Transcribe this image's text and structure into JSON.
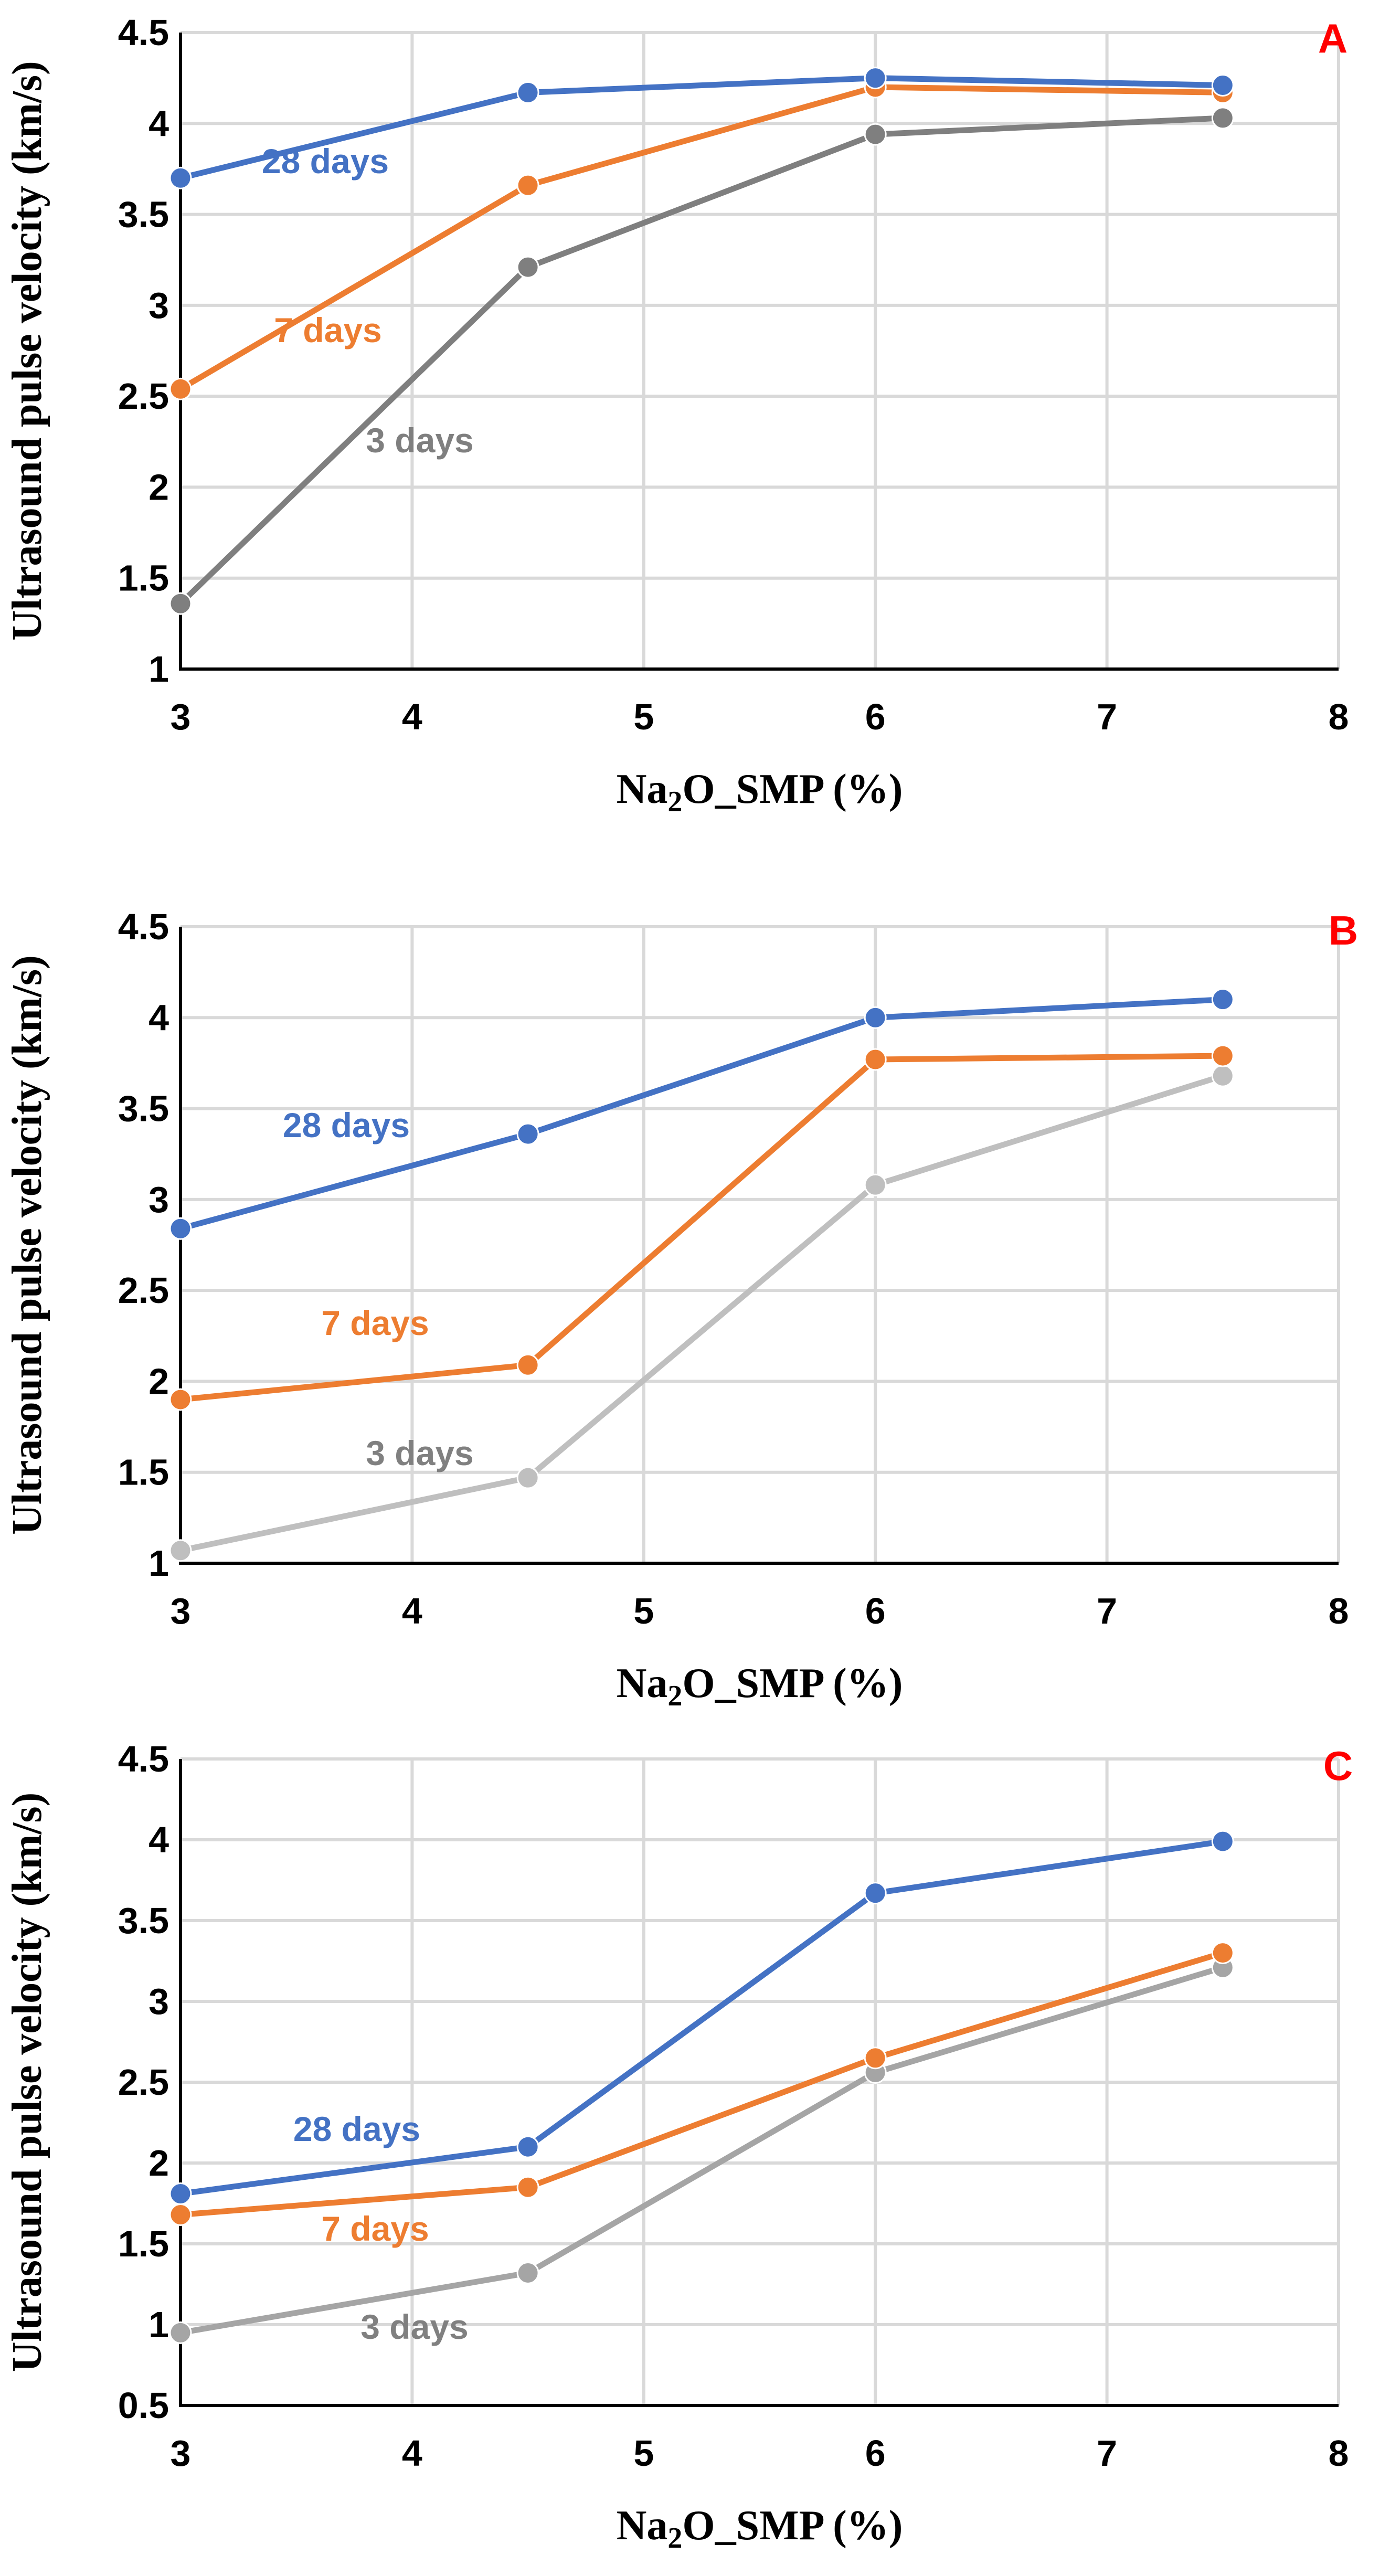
{
  "chart_data": [
    {
      "type": "line",
      "panel_label": "A",
      "xlabel": {
        "main": "Na",
        "sub": "2",
        "rest": "O_SMP (%)"
      },
      "ylabel": "Ultrasound pulse velocity (km/s)",
      "xlim": [
        3,
        8
      ],
      "ylim": [
        1,
        4.5
      ],
      "xticks": [
        3,
        4,
        5,
        6,
        7,
        8
      ],
      "yticks": [
        "1",
        "1.5",
        "2",
        "2.5",
        "3",
        "3.5",
        "4",
        "4.5"
      ],
      "grid": true,
      "x": [
        3,
        4.5,
        6,
        7.5
      ],
      "series": [
        {
          "name": "3 days",
          "color": "#7f7f7f",
          "values": [
            1.36,
            3.21,
            3.94,
            4.03
          ]
        },
        {
          "name": "7 days",
          "color": "#ed7d31",
          "values": [
            2.54,
            3.66,
            4.2,
            4.17
          ]
        },
        {
          "name": "28 days",
          "color": "#4472c4",
          "values": [
            3.7,
            4.17,
            4.25,
            4.21
          ]
        }
      ]
    },
    {
      "type": "line",
      "panel_label": "B",
      "xlabel": {
        "main": "Na",
        "sub": "2",
        "rest": "O_SMP (%)"
      },
      "ylabel": "Ultrasound pulse velocity (km/s)",
      "xlim": [
        3,
        8
      ],
      "ylim": [
        1,
        4.5
      ],
      "xticks": [
        3,
        4,
        5,
        6,
        7,
        8
      ],
      "yticks": [
        "1",
        "1.5",
        "2",
        "2.5",
        "3",
        "3.5",
        "4",
        "4.5"
      ],
      "grid": true,
      "x": [
        3,
        4.5,
        6,
        7.5
      ],
      "series": [
        {
          "name": "3 days",
          "color": "#bfbfbf",
          "label_color": "#808080",
          "values": [
            1.07,
            1.47,
            3.08,
            3.68
          ]
        },
        {
          "name": "7 days",
          "color": "#ed7d31",
          "values": [
            1.9,
            2.09,
            3.77,
            3.79
          ]
        },
        {
          "name": "28 days",
          "color": "#4472c4",
          "values": [
            2.84,
            3.36,
            4.0,
            4.1
          ]
        }
      ]
    },
    {
      "type": "line",
      "panel_label": "C",
      "xlabel": {
        "main": "Na",
        "sub": "2",
        "rest": "O_SMP (%)"
      },
      "ylabel": "Ultrasound pulse velocity (km/s)",
      "xlim": [
        3,
        8
      ],
      "ylim": [
        0.5,
        4.5
      ],
      "xticks": [
        3,
        4,
        5,
        6,
        7,
        8
      ],
      "yticks": [
        "0.5",
        "1",
        "1.5",
        "2",
        "2.5",
        "3",
        "3.5",
        "4",
        "4.5"
      ],
      "grid": true,
      "x": [
        3,
        4.5,
        6,
        7.5
      ],
      "series": [
        {
          "name": "3 days",
          "color": "#a5a5a5",
          "label_color": "#808080",
          "values": [
            0.95,
            1.32,
            2.56,
            3.21
          ]
        },
        {
          "name": "7 days",
          "color": "#ed7d31",
          "values": [
            1.68,
            1.85,
            2.65,
            3.3
          ]
        },
        {
          "name": "28 days",
          "color": "#4472c4",
          "values": [
            1.81,
            2.1,
            3.67,
            3.99
          ]
        }
      ]
    }
  ]
}
